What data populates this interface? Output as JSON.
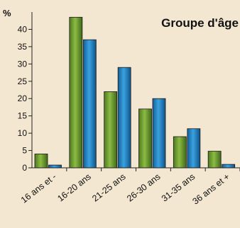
{
  "chart_data": {
    "type": "bar",
    "title": "Groupe d'âge",
    "ylabel": "%",
    "xlabel": "",
    "ylim": [
      0,
      45
    ],
    "yticks": [
      0,
      5,
      10,
      15,
      20,
      25,
      30,
      35,
      40
    ],
    "grid": false,
    "legend": "none",
    "categories": [
      "16 ans et -",
      "16-20 ans",
      "21-25 ans",
      "26-30 ans",
      "31-35 ans",
      "36 ans et +"
    ],
    "series": [
      {
        "values": [
          4,
          43.5,
          22,
          17,
          9,
          4.8
        ],
        "color": "#6a9a2e"
      },
      {
        "values": [
          0.8,
          37,
          29,
          20,
          11.3,
          1
        ],
        "color": "#1f7bbd"
      }
    ]
  },
  "background_color": "#f3e7d1"
}
